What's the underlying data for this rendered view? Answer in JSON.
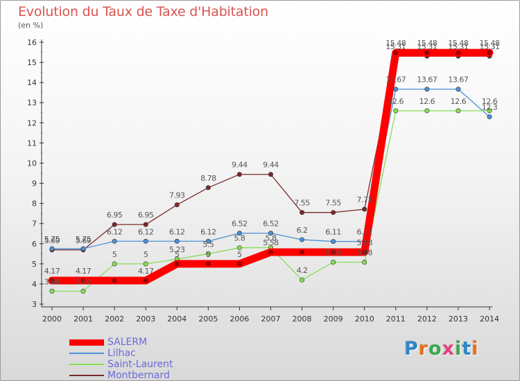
{
  "title": "Evolution du Taux de Taxe d'Habitation",
  "subtitle": "(en %)",
  "brand": {
    "text": "Proxiti",
    "letter_colors": [
      "#2f86c8",
      "#e46f1e",
      "#3fa64f",
      "#e83f7c",
      "#3fa64f",
      "#2f86c8",
      "#e46f1e"
    ]
  },
  "chart_data": {
    "type": "line",
    "x": [
      "2000",
      "2001",
      "2002",
      "2003",
      "2004",
      "2005",
      "2006",
      "2007",
      "2008",
      "2009",
      "2010",
      "2011",
      "2012",
      "2013",
      "2014"
    ],
    "ylim": [
      3,
      16
    ],
    "yticks": [
      "3",
      "4",
      "5",
      "6",
      "7",
      "8",
      "9",
      "10",
      "11",
      "12",
      "13",
      "14",
      "15",
      "16"
    ],
    "grid": false,
    "legend_position": "bottom-left",
    "series": [
      {
        "name": "SALERM",
        "color": "#ff0000",
        "values": [
          4.17,
          4.17,
          4.17,
          4.17,
          5,
          5,
          5,
          5.58,
          5.58,
          5.58,
          5.58,
          15.48,
          15.48,
          15.48,
          15.48
        ],
        "labels": [
          "4.17",
          "4.17",
          "",
          "4.17",
          "5",
          "5",
          "5",
          "5.58",
          "",
          "",
          "5.58",
          "15.48",
          "15.48",
          "15.48",
          "15.48"
        ]
      },
      {
        "name": "Lilhac",
        "color": "#4a90d6",
        "values": [
          5.75,
          5.75,
          6.12,
          6.12,
          6.12,
          6.12,
          6.52,
          6.52,
          6.2,
          6.11,
          6.11,
          13.67,
          13.67,
          13.67,
          12.3
        ],
        "labels": [
          "5.75",
          "5.75",
          "6.12",
          "6.12",
          "6.12",
          "6.12",
          "6.52",
          "6.52",
          "6.2",
          "6.11",
          "6.11",
          "13.67",
          "13.67",
          "13.67",
          "12.3"
        ]
      },
      {
        "name": "Saint-Laurent",
        "color": "#88dd55",
        "values": [
          3.64,
          3.64,
          5,
          5,
          5.23,
          5.5,
          5.8,
          5.8,
          4.2,
          5.08,
          5.08,
          12.6,
          12.6,
          12.6,
          12.6
        ],
        "labels": [
          "3.64",
          "3.64",
          "5",
          "5",
          "5.23",
          "5.5",
          "5.8",
          "5.8",
          "4.2",
          "5.08",
          "5.08",
          "12.6",
          "12.6",
          "12.6",
          "12.6"
        ]
      },
      {
        "name": "Montbernard",
        "color": "#7a2a2a",
        "values": [
          5.69,
          5.69,
          6.95,
          6.95,
          7.93,
          8.78,
          9.44,
          9.44,
          7.55,
          7.55,
          7.71,
          15.31,
          15.31,
          15.31,
          15.31
        ],
        "labels": [
          "5.69",
          "5.69",
          "6.95",
          "6.95",
          "7.93",
          "8.78",
          "9.44",
          "9.44",
          "7.55",
          "7.55",
          "7.71",
          "15.31",
          "15.31",
          "15.31",
          "15.31"
        ]
      }
    ]
  }
}
